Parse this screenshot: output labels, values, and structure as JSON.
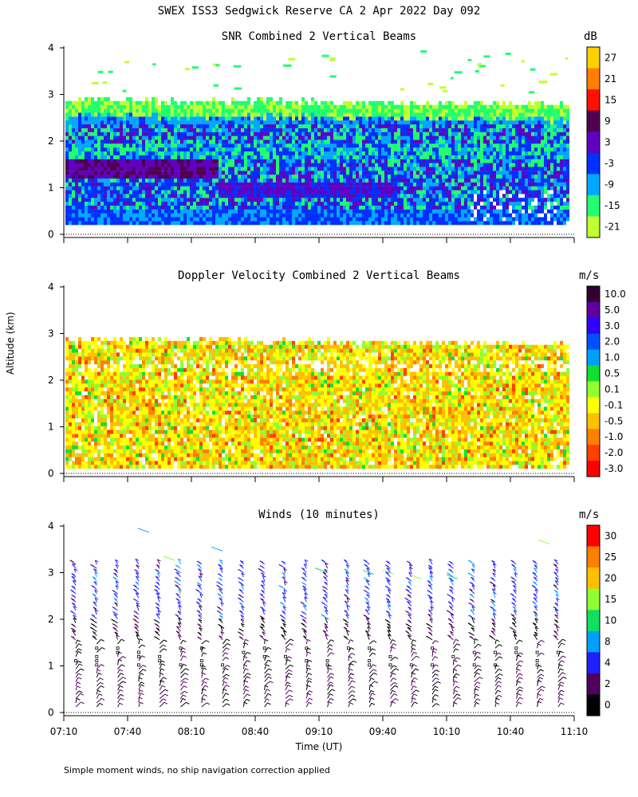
{
  "header": {
    "title": "SWEX ISS3 Sedgwick Reserve CA    2 Apr 2022 Day 092"
  },
  "axes": {
    "ylabel": "Altitude (km)",
    "xlabel": "Time (UT)",
    "yticks": [
      "0",
      "1",
      "2",
      "3",
      "4"
    ],
    "xticks": [
      "07:10",
      "07:40",
      "08:10",
      "08:40",
      "09:10",
      "09:40",
      "10:10",
      "10:40",
      "11:10"
    ]
  },
  "footer": {
    "note": "Simple moment winds, no ship navigation correction applied"
  },
  "chart_data": [
    {
      "type": "heatmap",
      "title": "SNR Combined 2 Vertical Beams",
      "colorbar_unit": "dB",
      "colorbar_ticks": [
        "27",
        "21",
        "15",
        "9",
        "3",
        "-3",
        "-9",
        "-15",
        "-21"
      ],
      "colorbar_colors": [
        "#ffd000",
        "#ff8000",
        "#ff1000",
        "#500050",
        "#6000c0",
        "#0030ff",
        "#00a8ff",
        "#20ff70",
        "#c0ff30"
      ],
      "xlim": [
        "07:10",
        "11:10"
      ],
      "ylim": [
        0,
        4
      ],
      "grid": false
    },
    {
      "type": "heatmap",
      "title": "Doppler Velocity Combined 2 Vertical Beams",
      "colorbar_unit": "m/s",
      "colorbar_ticks": [
        "10.0",
        "5.0",
        "3.0",
        "2.0",
        "1.0",
        "0.5",
        "0.1",
        "-0.1",
        "-0.5",
        "-1.0",
        "-2.0",
        "-3.0"
      ],
      "colorbar_colors": [
        "#300030",
        "#6000a0",
        "#3000ff",
        "#0050ff",
        "#00a0ff",
        "#10e030",
        "#90ff30",
        "#ffff00",
        "#ffc000",
        "#ff8000",
        "#ff4000",
        "#ff0000"
      ],
      "xlim": [
        "07:10",
        "11:10"
      ],
      "ylim": [
        0,
        4
      ],
      "grid": false
    },
    {
      "type": "scatter",
      "title": "Winds (10 minutes)",
      "colorbar_unit": "m/s",
      "colorbar_ticks": [
        "30",
        "25",
        "20",
        "15",
        "10",
        "8",
        "4",
        "2",
        "0"
      ],
      "colorbar_colors": [
        "#ff0000",
        "#ff8000",
        "#ffc000",
        "#90ff30",
        "#10e060",
        "#00a0ff",
        "#2020ff",
        "#500060",
        "#000000"
      ],
      "xlim": [
        "07:10",
        "11:10"
      ],
      "ylim": [
        0,
        4
      ],
      "grid": false
    }
  ]
}
